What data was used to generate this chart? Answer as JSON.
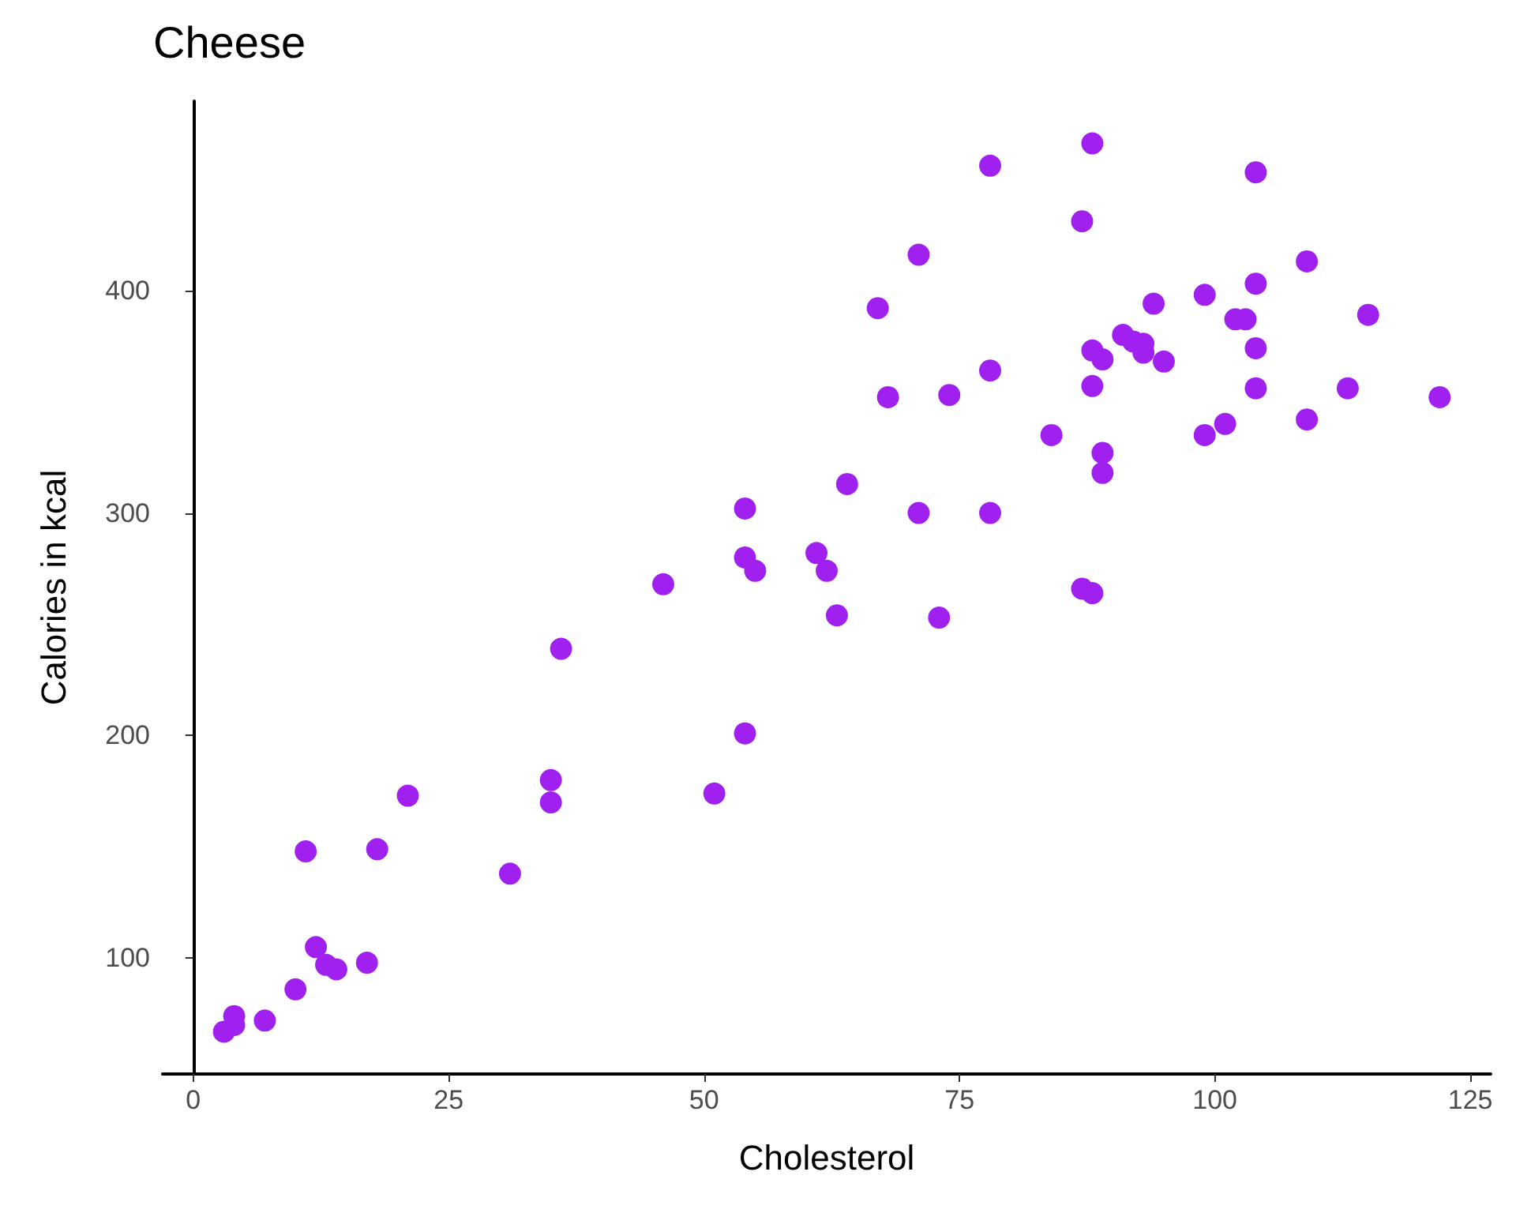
{
  "chart_data": {
    "type": "scatter",
    "title": "Cheese",
    "xlabel": "Cholesterol",
    "ylabel": "Calories in kcal",
    "x": [
      3,
      4,
      4,
      7,
      10,
      12,
      13,
      14,
      17,
      11,
      18,
      21,
      31,
      35,
      35,
      36,
      46,
      51,
      54,
      54,
      54,
      55,
      61,
      62,
      63,
      64,
      71,
      73,
      67,
      68,
      71,
      74,
      78,
      78,
      78,
      84,
      87,
      87,
      88,
      88,
      88,
      88,
      89,
      89,
      89,
      91,
      92,
      93,
      93,
      94,
      95,
      99,
      99,
      101,
      102,
      103,
      104,
      104,
      104,
      104,
      109,
      109,
      113,
      115,
      122
    ],
    "series": [
      {
        "color": "#a020f0",
        "values": [
          67,
          74,
          70,
          72,
          86,
          105,
          97,
          95,
          98,
          148,
          149,
          173,
          138,
          180,
          170,
          239,
          268,
          174,
          201,
          302,
          280,
          274,
          282,
          274,
          254,
          313,
          300,
          253,
          392,
          352,
          416,
          353,
          456,
          364,
          300,
          335,
          431,
          266,
          264,
          466,
          373,
          357,
          318,
          327,
          369,
          380,
          377,
          376,
          372,
          394,
          368,
          398,
          335,
          340,
          387,
          387,
          403,
          453,
          374,
          356,
          413,
          342,
          356,
          389,
          352
        ]
      }
    ],
    "xlim": [
      -3,
      127
    ],
    "ylim": [
      48,
      485
    ],
    "xticks": [
      0,
      25,
      50,
      75,
      100,
      125
    ],
    "yticks": [
      100,
      200,
      300,
      400
    ],
    "grid": false,
    "marker": "circle"
  }
}
